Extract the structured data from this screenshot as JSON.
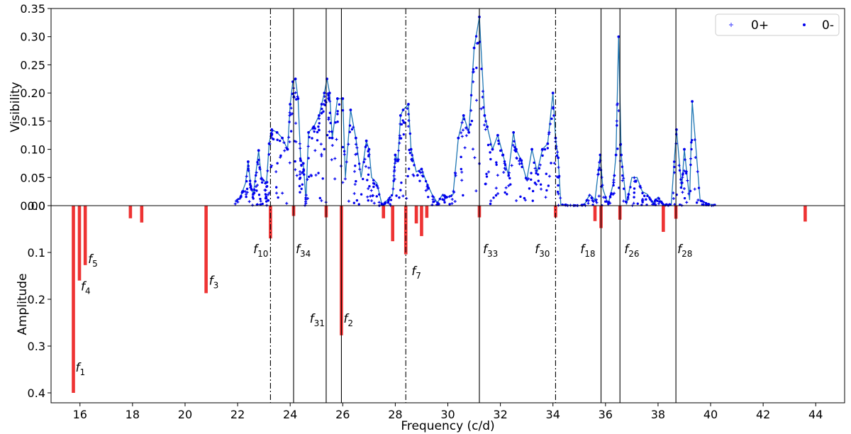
{
  "chart_data": [
    {
      "type": "scatter",
      "panel": "top",
      "ylabel": "Visibility",
      "xlabel": "",
      "xlim": [
        14.9,
        45.1
      ],
      "ylim": [
        0,
        0.35
      ],
      "yticks": [
        "0.00",
        "0.05",
        "0.10",
        "0.15",
        "0.20",
        "0.25",
        "0.30",
        "0.35"
      ],
      "legend": {
        "placement": "top-right",
        "entries": [
          "0+",
          "0-"
        ]
      },
      "colors": {
        "points": "#0000ee",
        "curve": "#1f77b4",
        "lines": "#000000"
      },
      "envelope": [
        [
          21.9,
          0.007
        ],
        [
          22.1,
          0.015
        ],
        [
          22.3,
          0.04
        ],
        [
          22.4,
          0.078
        ],
        [
          22.5,
          0.035
        ],
        [
          22.6,
          0.02
        ],
        [
          22.7,
          0.06
        ],
        [
          22.8,
          0.098
        ],
        [
          22.9,
          0.05
        ],
        [
          23.0,
          0.045
        ],
        [
          23.1,
          0.04
        ],
        [
          23.2,
          0.11
        ],
        [
          23.3,
          0.135
        ],
        [
          23.5,
          0.13
        ],
        [
          23.7,
          0.12
        ],
        [
          23.9,
          0.1
        ],
        [
          24.0,
          0.18
        ],
        [
          24.1,
          0.22
        ],
        [
          24.2,
          0.225
        ],
        [
          24.3,
          0.19
        ],
        [
          24.4,
          0.08
        ],
        [
          24.5,
          0.075
        ],
        [
          24.6,
          0.01
        ],
        [
          24.7,
          0.13
        ],
        [
          24.9,
          0.14
        ],
        [
          25.1,
          0.16
        ],
        [
          25.2,
          0.18
        ],
        [
          25.3,
          0.2
        ],
        [
          25.4,
          0.225
        ],
        [
          25.5,
          0.2
        ],
        [
          25.6,
          0.12
        ],
        [
          25.8,
          0.19
        ],
        [
          26.0,
          0.19
        ],
        [
          26.1,
          0.05
        ],
        [
          26.3,
          0.17
        ],
        [
          26.5,
          0.12
        ],
        [
          26.7,
          0.05
        ],
        [
          26.9,
          0.115
        ],
        [
          27.0,
          0.1
        ],
        [
          27.1,
          0.05
        ],
        [
          27.3,
          0.04
        ],
        [
          27.5,
          0.0
        ],
        [
          27.7,
          0.01
        ],
        [
          27.9,
          0.02
        ],
        [
          28.0,
          0.09
        ],
        [
          28.1,
          0.08
        ],
        [
          28.2,
          0.16
        ],
        [
          28.3,
          0.17
        ],
        [
          28.5,
          0.18
        ],
        [
          28.6,
          0.1
        ],
        [
          28.8,
          0.06
        ],
        [
          29.0,
          0.065
        ],
        [
          29.2,
          0.04
        ],
        [
          29.4,
          0.02
        ],
        [
          29.6,
          0.005
        ],
        [
          29.8,
          0.02
        ],
        [
          30.0,
          0.015
        ],
        [
          30.2,
          0.02
        ],
        [
          30.4,
          0.12
        ],
        [
          30.6,
          0.16
        ],
        [
          30.8,
          0.13
        ],
        [
          31.0,
          0.28
        ],
        [
          31.2,
          0.335
        ],
        [
          31.4,
          0.16
        ],
        [
          31.5,
          0.14
        ],
        [
          31.7,
          0.1
        ],
        [
          31.9,
          0.125
        ],
        [
          32.1,
          0.09
        ],
        [
          32.3,
          0.055
        ],
        [
          32.5,
          0.13
        ],
        [
          32.6,
          0.1
        ],
        [
          32.8,
          0.08
        ],
        [
          33.0,
          0.045
        ],
        [
          33.2,
          0.1
        ],
        [
          33.4,
          0.06
        ],
        [
          33.6,
          0.1
        ],
        [
          33.8,
          0.11
        ],
        [
          34.0,
          0.2
        ],
        [
          34.1,
          0.12
        ],
        [
          34.2,
          0.085
        ],
        [
          34.3,
          0.002
        ],
        [
          34.6,
          0.001
        ],
        [
          35.0,
          0.0
        ],
        [
          35.2,
          0.002
        ],
        [
          35.4,
          0.02
        ],
        [
          35.6,
          0.01
        ],
        [
          35.8,
          0.09
        ],
        [
          35.9,
          0.03
        ],
        [
          36.1,
          0.002
        ],
        [
          36.3,
          0.04
        ],
        [
          36.4,
          0.09
        ],
        [
          36.5,
          0.3
        ],
        [
          36.6,
          0.09
        ],
        [
          36.8,
          0.002
        ],
        [
          37.0,
          0.05
        ],
        [
          37.2,
          0.05
        ],
        [
          37.4,
          0.025
        ],
        [
          37.6,
          0.02
        ],
        [
          37.8,
          0.005
        ],
        [
          38.0,
          0.015
        ],
        [
          38.2,
          0.002
        ],
        [
          38.5,
          0.002
        ],
        [
          38.7,
          0.135
        ],
        [
          38.9,
          0.03
        ],
        [
          39.0,
          0.1
        ],
        [
          39.2,
          0.01
        ],
        [
          39.3,
          0.185
        ],
        [
          39.6,
          0.01
        ],
        [
          39.9,
          0.003
        ],
        [
          40.2,
          0.001
        ]
      ],
      "vlines": [
        {
          "x": 23.25,
          "style": "dashdot"
        },
        {
          "x": 24.13,
          "style": "solid"
        },
        {
          "x": 25.37,
          "style": "solid"
        },
        {
          "x": 25.95,
          "style": "solid"
        },
        {
          "x": 28.4,
          "style": "dashdot"
        },
        {
          "x": 31.2,
          "style": "solid"
        },
        {
          "x": 34.1,
          "style": "dashdot"
        },
        {
          "x": 35.83,
          "style": "solid"
        },
        {
          "x": 36.55,
          "style": "solid"
        },
        {
          "x": 38.68,
          "style": "solid"
        }
      ]
    },
    {
      "type": "bar",
      "panel": "bottom",
      "xlabel": "Frequency (c/d)",
      "ylabel": "Amplitude",
      "xlim": [
        14.9,
        45.1
      ],
      "ylim": [
        0,
        0.42
      ],
      "inverted_y": true,
      "xticks": [
        "16",
        "18",
        "20",
        "22",
        "24",
        "26",
        "28",
        "30",
        "32",
        "34",
        "36",
        "38",
        "40",
        "42",
        "44"
      ],
      "yticks": [
        "0.0",
        "0.1",
        "0.2",
        "0.3",
        "0.4"
      ],
      "colors": {
        "bars": "#ee3333"
      },
      "bars": [
        {
          "x": 15.75,
          "amp": 0.4,
          "label": "1"
        },
        {
          "x": 15.98,
          "amp": 0.16,
          "label": "4"
        },
        {
          "x": 16.2,
          "amp": 0.127,
          "label": "5"
        },
        {
          "x": 17.92,
          "amp": 0.027,
          "label": ""
        },
        {
          "x": 18.35,
          "amp": 0.036,
          "label": ""
        },
        {
          "x": 20.8,
          "amp": 0.187,
          "label": "3"
        },
        {
          "x": 23.25,
          "amp": 0.07,
          "label": "10"
        },
        {
          "x": 24.13,
          "amp": 0.022,
          "label": "34"
        },
        {
          "x": 25.37,
          "amp": 0.025,
          "label": "31"
        },
        {
          "x": 25.95,
          "amp": 0.277,
          "label": "2"
        },
        {
          "x": 27.55,
          "amp": 0.027,
          "label": ""
        },
        {
          "x": 27.9,
          "amp": 0.076,
          "label": ""
        },
        {
          "x": 28.4,
          "amp": 0.104,
          "label": "7"
        },
        {
          "x": 28.8,
          "amp": 0.038,
          "label": ""
        },
        {
          "x": 29.0,
          "amp": 0.065,
          "label": ""
        },
        {
          "x": 29.2,
          "amp": 0.026,
          "label": ""
        },
        {
          "x": 31.2,
          "amp": 0.025,
          "label": "33"
        },
        {
          "x": 34.1,
          "amp": 0.025,
          "label": "30"
        },
        {
          "x": 35.6,
          "amp": 0.033,
          "label": ""
        },
        {
          "x": 35.83,
          "amp": 0.048,
          "label": "18"
        },
        {
          "x": 36.55,
          "amp": 0.03,
          "label": "26"
        },
        {
          "x": 38.2,
          "amp": 0.056,
          "label": ""
        },
        {
          "x": 38.68,
          "amp": 0.028,
          "label": "28"
        },
        {
          "x": 43.6,
          "amp": 0.034,
          "label": ""
        }
      ]
    }
  ]
}
